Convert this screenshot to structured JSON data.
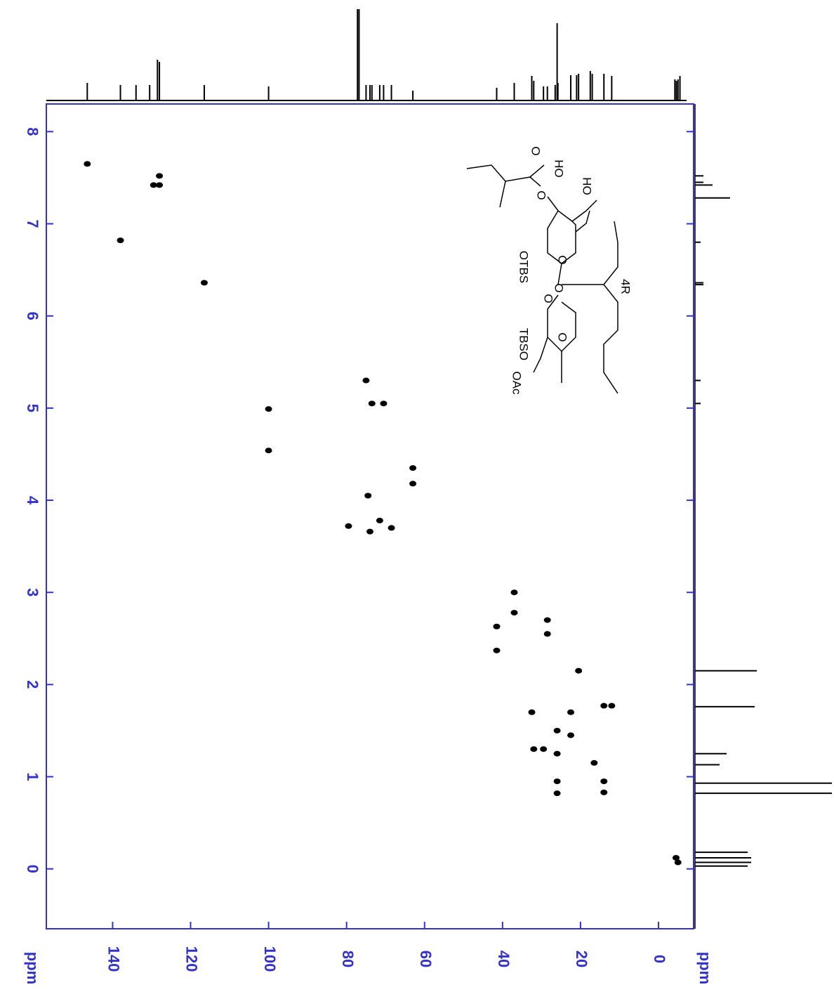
{
  "chart_data": {
    "type": "scatter",
    "xlabel": "ppm",
    "ylabel": "ppm",
    "xlim": [
      157,
      -9
    ],
    "ylim": [
      -0.65,
      8.3
    ],
    "xticks": [
      140,
      120,
      100,
      80,
      60,
      40,
      20,
      0
    ],
    "yticks": [
      8,
      7,
      6,
      5,
      4,
      3,
      2,
      1,
      0
    ],
    "color": "#000000",
    "axis_color": "#3333cc",
    "x": [
      146.5,
      128,
      129.5,
      128,
      138,
      116.5,
      100,
      100,
      75,
      73.5,
      70.5,
      63,
      63,
      74.5,
      79.5,
      74,
      71.5,
      68.5,
      37,
      37,
      41.5,
      41.5,
      28.5,
      28.5,
      20.5,
      32.5,
      22.5,
      12,
      14,
      26,
      22.5,
      32,
      29.5,
      26,
      16.5,
      26,
      26,
      14,
      14,
      -4.5,
      -5
    ],
    "y": [
      7.65,
      7.52,
      7.42,
      7.42,
      6.82,
      6.36,
      4.99,
      4.54,
      5.3,
      5.05,
      5.05,
      4.35,
      4.18,
      4.05,
      3.72,
      3.66,
      3.78,
      3.7,
      3.0,
      2.78,
      2.63,
      2.37,
      2.7,
      2.55,
      2.15,
      1.7,
      1.7,
      1.77,
      1.77,
      1.5,
      1.45,
      1.3,
      1.3,
      1.25,
      1.15,
      0.95,
      0.82,
      0.95,
      0.83,
      0.12,
      0.07
    ],
    "top_projection": {
      "x": [
        146.5,
        138,
        134,
        130.5,
        128.5,
        128,
        116.5,
        100,
        77.2,
        76.8,
        75,
        74,
        73.5,
        71.5,
        70.5,
        68.5,
        63,
        41.5,
        37,
        32.5,
        32,
        29.5,
        28.5,
        26.5,
        26,
        25.8,
        22.5,
        21,
        20.5,
        17.5,
        17,
        14,
        12,
        -4.2,
        -4.6,
        -5,
        -5.5
      ],
      "values": [
        25,
        22,
        22,
        22,
        58,
        55,
        22,
        20,
        130,
        130,
        22,
        22,
        22,
        22,
        22,
        22,
        14,
        18,
        25,
        35,
        28,
        20,
        20,
        22,
        110,
        25,
        36,
        36,
        38,
        42,
        38,
        38,
        35,
        30,
        28,
        30,
        35
      ]
    },
    "right_projection": {
      "y": [
        7.52,
        7.45,
        7.42,
        7.28,
        6.8,
        6.36,
        6.34,
        5.3,
        5.05,
        2.15,
        1.76,
        1.25,
        1.13,
        0.93,
        0.82,
        0.18,
        0.12,
        0.07,
        0.03
      ],
      "values": [
        12,
        12,
        25,
        50,
        8,
        12,
        12,
        8,
        8,
        88,
        85,
        45,
        35,
        195,
        195,
        75,
        80,
        80,
        75
      ]
    },
    "annotations": [
      "O",
      "HO",
      "HO",
      "O",
      "O",
      "OTBS",
      "O",
      "O",
      "TBSO",
      "O",
      "OAc",
      "4R"
    ]
  }
}
